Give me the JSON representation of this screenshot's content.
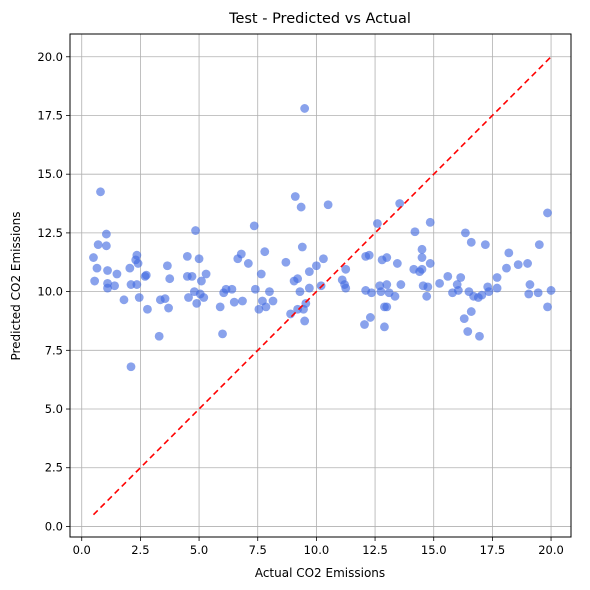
{
  "chart_data": {
    "type": "scatter",
    "title": "Test - Predicted vs Actual",
    "xlabel": "Actual CO2 Emissions",
    "ylabel": "Predicted CO2 Emissions",
    "xlim": [
      -0.5,
      20.85
    ],
    "ylim": [
      -0.45,
      20.97
    ],
    "x_ticks": [
      "0.0",
      "2.5",
      "5.0",
      "7.5",
      "10.0",
      "12.5",
      "15.0",
      "17.5",
      "20.0"
    ],
    "y_ticks": [
      "0.0",
      "2.5",
      "5.0",
      "7.5",
      "10.0",
      "12.5",
      "15.0",
      "17.5",
      "20.0"
    ],
    "grid": true,
    "point_color": "#4169e1",
    "reference_line": {
      "x": [
        0.5,
        20.0
      ],
      "y": [
        0.5,
        20.0
      ],
      "color": "#ff0000",
      "style": "dashed"
    },
    "points": [
      {
        "x": 0.5,
        "y": 11.45
      },
      {
        "x": 0.55,
        "y": 10.45
      },
      {
        "x": 0.65,
        "y": 11.0
      },
      {
        "x": 0.7,
        "y": 12.0
      },
      {
        "x": 0.8,
        "y": 14.25
      },
      {
        "x": 1.05,
        "y": 12.45
      },
      {
        "x": 1.05,
        "y": 11.95
      },
      {
        "x": 1.1,
        "y": 10.9
      },
      {
        "x": 1.1,
        "y": 10.15
      },
      {
        "x": 1.1,
        "y": 10.35
      },
      {
        "x": 1.4,
        "y": 10.25
      },
      {
        "x": 1.5,
        "y": 10.75
      },
      {
        "x": 1.8,
        "y": 9.65
      },
      {
        "x": 2.05,
        "y": 11.0
      },
      {
        "x": 2.1,
        "y": 10.3
      },
      {
        "x": 2.1,
        "y": 6.8
      },
      {
        "x": 2.3,
        "y": 11.35
      },
      {
        "x": 2.35,
        "y": 10.3
      },
      {
        "x": 2.35,
        "y": 11.55
      },
      {
        "x": 2.4,
        "y": 11.2
      },
      {
        "x": 2.45,
        "y": 9.75
      },
      {
        "x": 2.7,
        "y": 10.65
      },
      {
        "x": 2.75,
        "y": 10.7
      },
      {
        "x": 2.8,
        "y": 9.25
      },
      {
        "x": 3.3,
        "y": 8.1
      },
      {
        "x": 3.35,
        "y": 9.65
      },
      {
        "x": 3.55,
        "y": 9.7
      },
      {
        "x": 3.65,
        "y": 11.1
      },
      {
        "x": 3.7,
        "y": 9.3
      },
      {
        "x": 3.75,
        "y": 10.55
      },
      {
        "x": 4.5,
        "y": 10.65
      },
      {
        "x": 4.5,
        "y": 11.5
      },
      {
        "x": 4.55,
        "y": 9.75
      },
      {
        "x": 4.7,
        "y": 10.65
      },
      {
        "x": 4.8,
        "y": 10.0
      },
      {
        "x": 4.85,
        "y": 12.6
      },
      {
        "x": 4.9,
        "y": 9.5
      },
      {
        "x": 5.0,
        "y": 11.4
      },
      {
        "x": 5.05,
        "y": 9.9
      },
      {
        "x": 5.1,
        "y": 10.45
      },
      {
        "x": 5.2,
        "y": 9.75
      },
      {
        "x": 5.3,
        "y": 10.75
      },
      {
        "x": 5.9,
        "y": 9.35
      },
      {
        "x": 6.0,
        "y": 8.2
      },
      {
        "x": 6.05,
        "y": 9.95
      },
      {
        "x": 6.15,
        "y": 10.1
      },
      {
        "x": 6.4,
        "y": 10.1
      },
      {
        "x": 6.5,
        "y": 9.55
      },
      {
        "x": 6.65,
        "y": 11.4
      },
      {
        "x": 6.8,
        "y": 11.6
      },
      {
        "x": 6.85,
        "y": 9.6
      },
      {
        "x": 7.1,
        "y": 11.2
      },
      {
        "x": 7.35,
        "y": 12.8
      },
      {
        "x": 7.4,
        "y": 10.1
      },
      {
        "x": 7.55,
        "y": 9.25
      },
      {
        "x": 7.65,
        "y": 10.75
      },
      {
        "x": 7.7,
        "y": 9.6
      },
      {
        "x": 7.8,
        "y": 11.7
      },
      {
        "x": 7.85,
        "y": 9.35
      },
      {
        "x": 8.0,
        "y": 10.0
      },
      {
        "x": 8.15,
        "y": 9.6
      },
      {
        "x": 8.7,
        "y": 11.25
      },
      {
        "x": 8.9,
        "y": 9.05
      },
      {
        "x": 9.05,
        "y": 10.45
      },
      {
        "x": 9.1,
        "y": 14.05
      },
      {
        "x": 9.2,
        "y": 10.55
      },
      {
        "x": 9.2,
        "y": 9.25
      },
      {
        "x": 9.3,
        "y": 10.0
      },
      {
        "x": 9.35,
        "y": 13.6
      },
      {
        "x": 9.4,
        "y": 11.9
      },
      {
        "x": 9.45,
        "y": 9.25
      },
      {
        "x": 9.5,
        "y": 17.8
      },
      {
        "x": 9.5,
        "y": 8.75
      },
      {
        "x": 9.55,
        "y": 9.5
      },
      {
        "x": 9.7,
        "y": 10.15
      },
      {
        "x": 9.7,
        "y": 10.85
      },
      {
        "x": 10.0,
        "y": 11.1
      },
      {
        "x": 10.2,
        "y": 10.25
      },
      {
        "x": 10.3,
        "y": 11.4
      },
      {
        "x": 10.5,
        "y": 13.7
      },
      {
        "x": 11.1,
        "y": 10.5
      },
      {
        "x": 11.2,
        "y": 10.3
      },
      {
        "x": 11.25,
        "y": 10.95
      },
      {
        "x": 11.25,
        "y": 10.15
      },
      {
        "x": 12.05,
        "y": 8.6
      },
      {
        "x": 12.1,
        "y": 10.05
      },
      {
        "x": 12.1,
        "y": 11.5
      },
      {
        "x": 12.25,
        "y": 11.55
      },
      {
        "x": 12.3,
        "y": 8.9
      },
      {
        "x": 12.35,
        "y": 9.95
      },
      {
        "x": 12.6,
        "y": 12.9
      },
      {
        "x": 12.7,
        "y": 10.25
      },
      {
        "x": 12.75,
        "y": 10.0
      },
      {
        "x": 12.8,
        "y": 11.35
      },
      {
        "x": 12.9,
        "y": 8.5
      },
      {
        "x": 12.9,
        "y": 9.35
      },
      {
        "x": 13.0,
        "y": 11.45
      },
      {
        "x": 13.0,
        "y": 10.3
      },
      {
        "x": 13.0,
        "y": 9.35
      },
      {
        "x": 13.1,
        "y": 9.95
      },
      {
        "x": 13.35,
        "y": 9.8
      },
      {
        "x": 13.45,
        "y": 11.2
      },
      {
        "x": 13.55,
        "y": 13.75
      },
      {
        "x": 13.6,
        "y": 10.3
      },
      {
        "x": 14.15,
        "y": 10.95
      },
      {
        "x": 14.2,
        "y": 12.55
      },
      {
        "x": 14.4,
        "y": 10.85
      },
      {
        "x": 14.5,
        "y": 11.8
      },
      {
        "x": 14.5,
        "y": 11.45
      },
      {
        "x": 14.5,
        "y": 10.95
      },
      {
        "x": 14.55,
        "y": 10.25
      },
      {
        "x": 14.7,
        "y": 9.8
      },
      {
        "x": 14.75,
        "y": 10.2
      },
      {
        "x": 14.85,
        "y": 12.95
      },
      {
        "x": 14.85,
        "y": 11.2
      },
      {
        "x": 15.25,
        "y": 10.35
      },
      {
        "x": 15.6,
        "y": 10.65
      },
      {
        "x": 15.8,
        "y": 9.95
      },
      {
        "x": 16.0,
        "y": 10.3
      },
      {
        "x": 16.05,
        "y": 10.05
      },
      {
        "x": 16.15,
        "y": 10.6
      },
      {
        "x": 16.3,
        "y": 8.85
      },
      {
        "x": 16.35,
        "y": 12.5
      },
      {
        "x": 16.45,
        "y": 8.3
      },
      {
        "x": 16.5,
        "y": 10.0
      },
      {
        "x": 16.6,
        "y": 9.15
      },
      {
        "x": 16.6,
        "y": 12.1
      },
      {
        "x": 16.7,
        "y": 9.8
      },
      {
        "x": 16.9,
        "y": 9.75
      },
      {
        "x": 16.95,
        "y": 8.1
      },
      {
        "x": 17.05,
        "y": 9.85
      },
      {
        "x": 17.2,
        "y": 12.0
      },
      {
        "x": 17.3,
        "y": 10.2
      },
      {
        "x": 17.35,
        "y": 10.0
      },
      {
        "x": 17.7,
        "y": 10.15
      },
      {
        "x": 17.7,
        "y": 10.6
      },
      {
        "x": 18.1,
        "y": 11.0
      },
      {
        "x": 18.2,
        "y": 11.65
      },
      {
        "x": 18.6,
        "y": 11.15
      },
      {
        "x": 19.0,
        "y": 11.2
      },
      {
        "x": 19.05,
        "y": 9.9
      },
      {
        "x": 19.1,
        "y": 10.3
      },
      {
        "x": 19.45,
        "y": 9.95
      },
      {
        "x": 19.5,
        "y": 12.0
      },
      {
        "x": 19.85,
        "y": 13.35
      },
      {
        "x": 19.85,
        "y": 9.35
      },
      {
        "x": 20.0,
        "y": 10.05
      }
    ]
  }
}
